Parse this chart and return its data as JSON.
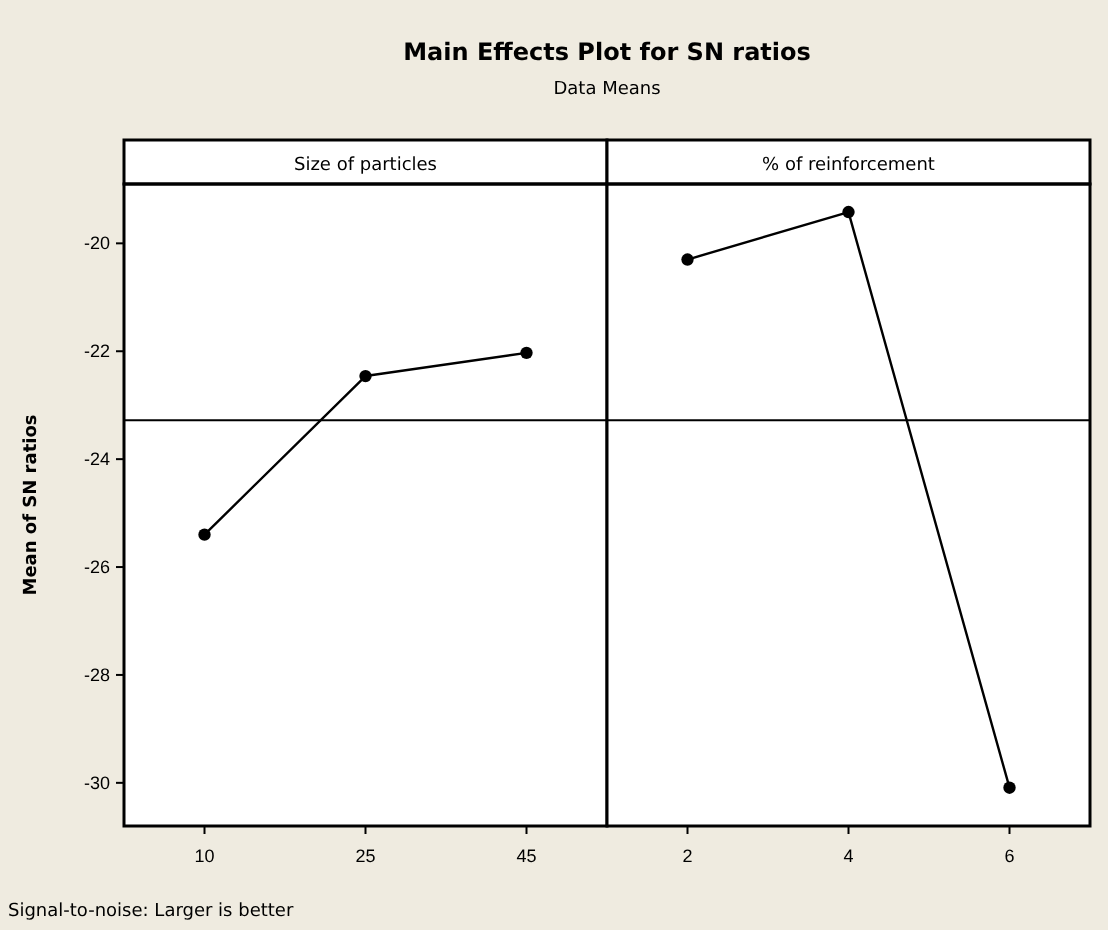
{
  "chart_data": [
    {
      "type": "line",
      "title": "Main Effects Plot for SN ratios",
      "subtitle": "Data Means",
      "xlabel": "Size of particles",
      "ylabel": "Mean of SN ratios",
      "annotations": [
        "Signal-to-noise: Larger is better"
      ],
      "categories": [
        "10",
        "25",
        "45"
      ],
      "series": [
        {
          "color": "#000000",
          "values": [
            -25.4,
            -22.46,
            -22.03
          ]
        }
      ],
      "ylim": [
        -30.8,
        -18.9
      ],
      "yticks": [
        -20,
        -22,
        -24,
        -26,
        -28,
        -30
      ],
      "ref_lines": [
        {
          "axis": "y",
          "value": -23.28,
          "color": "#000000"
        }
      ],
      "marker": "circle",
      "line_style": "solid"
    },
    {
      "type": "line",
      "xlabel": "% of reinforcement",
      "categories": [
        "2",
        "4",
        "6"
      ],
      "series": [
        {
          "color": "#000000",
          "values": [
            -20.3,
            -19.42,
            -30.09
          ]
        }
      ],
      "ylim": [
        -30.8,
        -18.9
      ],
      "yticks": [
        -20,
        -22,
        -24,
        -26,
        -28,
        -30
      ],
      "tick_labels": "x",
      "ref_lines": [
        {
          "axis": "y",
          "value": -23.28,
          "color": "#000000"
        }
      ],
      "marker": "circle",
      "line_style": "solid"
    }
  ]
}
